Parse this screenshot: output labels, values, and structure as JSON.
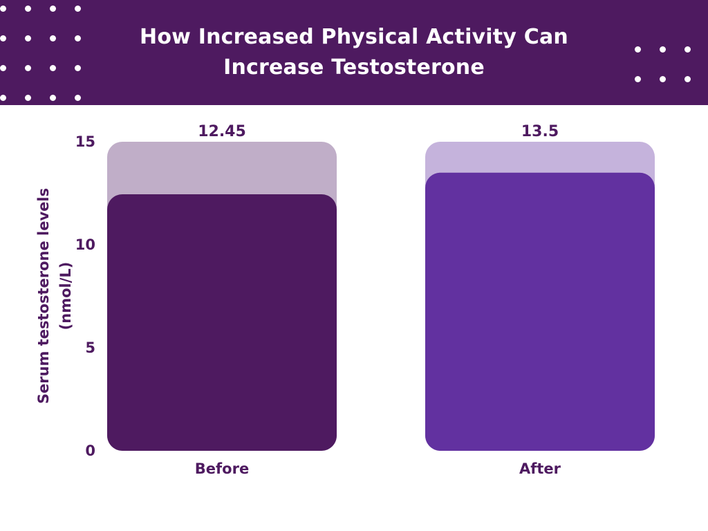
{
  "colors": {
    "header_bg": "#4e1a60",
    "text": "#4e1a60",
    "before_bar": "#4e1a60",
    "before_track": "#c0aec8",
    "after_bar": "#6231a0",
    "after_track": "#c5b3dc"
  },
  "header": {
    "title_line1": "How Increased Physical Activity Can",
    "title_line2": "Increase Testosterone"
  },
  "chart_data": {
    "type": "bar",
    "title": "How Increased Physical Activity Can Increase Testosterone",
    "categories": [
      "Before",
      "After"
    ],
    "values": [
      12.45,
      13.5
    ],
    "data_labels": [
      "12.45",
      "13.5"
    ],
    "ylabel": "Serum testosterone levels (nmol/L)",
    "ylabel_lines": [
      "Serum testosterone levels",
      "(nmol/L)"
    ],
    "yticks": [
      0,
      5,
      10,
      15
    ],
    "ylim": [
      0,
      15
    ],
    "grid": false,
    "legend": "none"
  }
}
